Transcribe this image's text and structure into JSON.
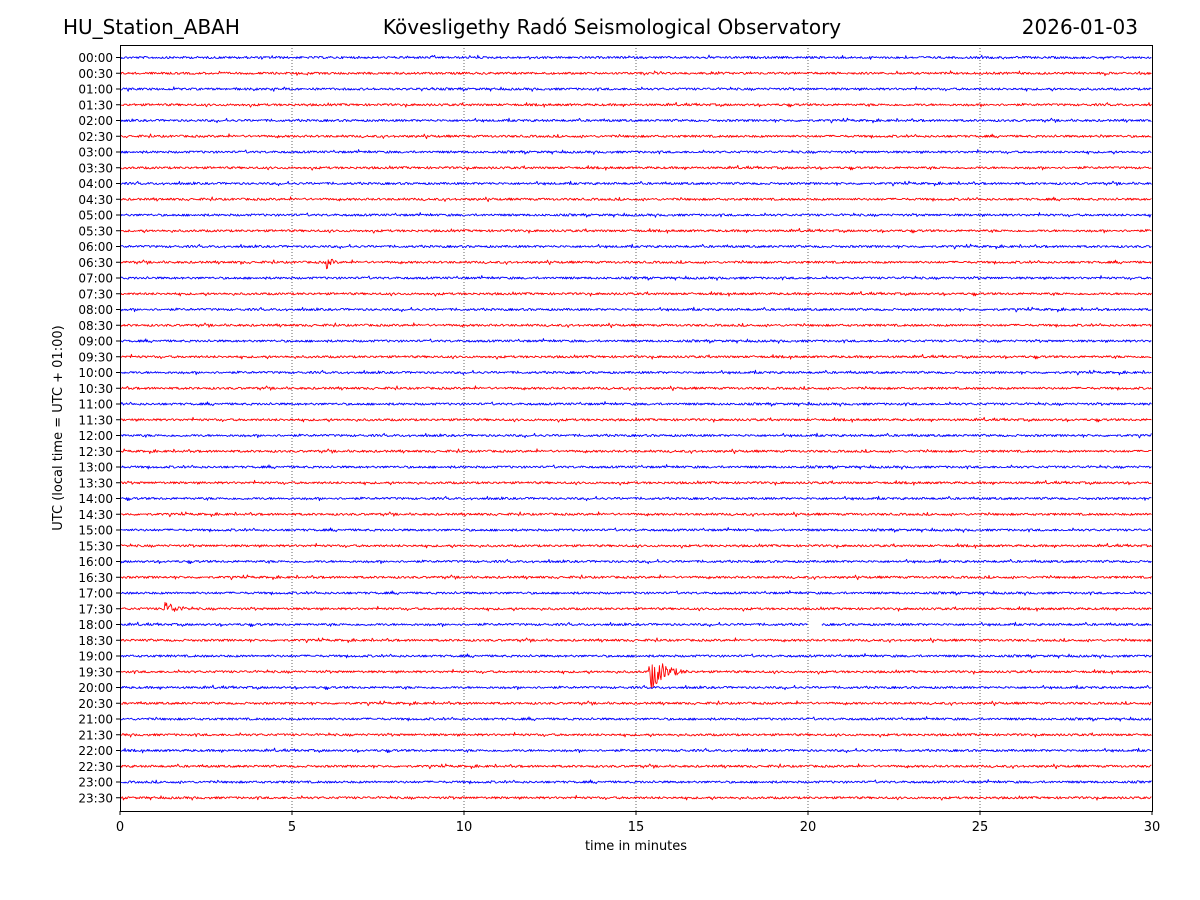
{
  "header": {
    "station": "HU_Station_ABAH",
    "observatory": "Kövesligethy Radó Seismological Observatory",
    "date": "2026-01-03"
  },
  "chart_data": {
    "type": "line",
    "title": "Kövesligethy Radó Seismological Observatory",
    "xlabel": "time in minutes",
    "ylabel": "UTC (local time = UTC + 01:00)",
    "xlim": [
      0,
      30
    ],
    "xticks": [
      0,
      5,
      10,
      15,
      20,
      25,
      30
    ],
    "grid_x": true,
    "grid_style": "dotted",
    "trace_colors": [
      "#0000ff",
      "#ff0000"
    ],
    "rows": [
      "00:00",
      "00:30",
      "01:00",
      "01:30",
      "02:00",
      "02:30",
      "03:00",
      "03:30",
      "04:00",
      "04:30",
      "05:00",
      "05:30",
      "06:00",
      "06:30",
      "07:00",
      "07:30",
      "08:00",
      "08:30",
      "09:00",
      "09:30",
      "10:00",
      "10:30",
      "11:00",
      "11:30",
      "12:00",
      "12:30",
      "13:00",
      "13:30",
      "14:00",
      "14:30",
      "15:00",
      "15:30",
      "16:00",
      "16:30",
      "17:00",
      "17:30",
      "18:00",
      "18:30",
      "19:00",
      "19:30",
      "20:00",
      "20:30",
      "21:00",
      "21:30",
      "22:00",
      "22:30",
      "23:00",
      "23:30"
    ],
    "events": [
      {
        "row": "06:30",
        "minute": 6.0,
        "amplitude": 7,
        "duration_min": 0.6
      },
      {
        "row": "06:30",
        "minute": 3.5,
        "amplitude": 3,
        "duration_min": 0.3
      },
      {
        "row": "17:30",
        "minute": 1.3,
        "amplitude": 8,
        "duration_min": 1.2
      },
      {
        "row": "19:30",
        "minute": 15.4,
        "amplitude": 20,
        "duration_min": 1.3
      },
      {
        "row": "22:00",
        "minute": 16.2,
        "amplitude": 4,
        "duration_min": 0.4
      },
      {
        "row": "04:00",
        "minute": 10.7,
        "amplitude": 3,
        "duration_min": 0.3
      },
      {
        "row": "02:30",
        "minute": 28.5,
        "amplitude": 3,
        "duration_min": 0.3
      }
    ],
    "gaps": [
      {
        "row": "18:00",
        "from_min": 20.0,
        "to_min": 20.4
      }
    ]
  }
}
